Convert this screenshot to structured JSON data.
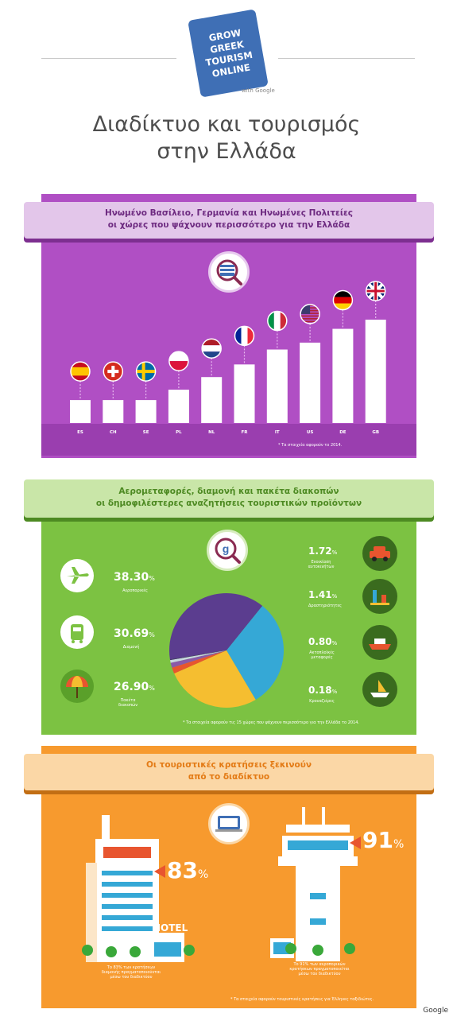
{
  "logo": {
    "lines": [
      "GROW GREEK",
      "TOURISM",
      "ONLINE"
    ],
    "with": "with Google"
  },
  "title": {
    "line1": "Διαδίκτυο και τουρισμός",
    "line2": "στην Ελλάδα"
  },
  "section1": {
    "heading1": "Ηνωμένο Βασίλειο, Γερμανία και Ηνωμένες Πολιτείες",
    "heading2": "οι χώρες που ψάχνουν περισσότερο για την Ελλάδα",
    "note": "* Τα στοιχεία αφορούν το 2014.",
    "icon": "greek-flag-search-icon"
  },
  "section2": {
    "heading1": "Αερομεταφορές, διαμονή και πακέτα διακοπών",
    "heading2": "οι δημοφιλέστερες αναζητήσεις τουριστικών προϊόντων",
    "note": "* Τα στοιχεία αφορούν τις 15 χώρες που ψάχνουν περισσότερο για την Ελλάδα το 2014.",
    "icon": "google-search-icon"
  },
  "section3": {
    "heading1": "Οι τουριστικές κρατήσεις ξεκινούν",
    "heading2": "από το διαδίκτυο",
    "hotel_sign": "HOTEL",
    "stat1": {
      "value": "83",
      "unit": "%",
      "caption1": "Το 83% των κρατήσεων",
      "caption2": "διαμονής πραγματοποιούνται",
      "caption3": "μέσω του διαδικτύου"
    },
    "stat2": {
      "value": "91",
      "unit": "%",
      "caption1": "Το 91% των αεροπορικών",
      "caption2": "κρατήσεων πραγματοποιείται",
      "caption3": "μέσω του διαδικτύου"
    },
    "note": "* Τα στοιχεία αφορούν τουριστικές κρατήσεις για Έλληνες ταξιδιώτες.",
    "icon": "laptop-booking-icon"
  },
  "footer": {
    "credit": "Google"
  },
  "chart_data": [
    {
      "type": "bar",
      "title": "Ηνωμένο Βασίλειο, Γερμανία και Ηνωμένες Πολιτείες οι χώρες που ψάχνουν περισσότερο για την Ελλάδα",
      "categories": [
        "ES",
        "CH",
        "SE",
        "PL",
        "NL",
        "FR",
        "IT",
        "US",
        "DE",
        "GB"
      ],
      "values": [
        1.0,
        1.0,
        1.0,
        1.45,
        2.0,
        2.55,
        3.2,
        3.5,
        4.1,
        4.5
      ],
      "colors": {
        "bar": "#ffffff"
      },
      "ylim": [
        0,
        4.5
      ],
      "legend": "none",
      "grid": false
    },
    {
      "type": "pie",
      "title": "Αερομεταφορές, διαμονή και πακέτα διακοπών οι δημοφιλέστερες αναζητήσεις τουριστικών προϊόντων",
      "slices": [
        {
          "label": "Αεροπορικές",
          "value": 38.3,
          "display": "38.30",
          "color": "#5b3d8f",
          "icon": "airplane-icon"
        },
        {
          "label": "Διαμονή",
          "value": 30.69,
          "display": "30.69",
          "color": "#35a8d6",
          "icon": "luggage-icon"
        },
        {
          "label": "Πακέτα διακοπών",
          "value": 26.9,
          "display": "26.90",
          "color": "#f5be30",
          "icon": "beach-umbrella-icon"
        },
        {
          "label": "Ενοικίαση αυτοκινήτων",
          "value": 1.72,
          "display": "1.72",
          "color": "#e8552f",
          "icon": "car-icon"
        },
        {
          "label": "Δραστηριότητες",
          "value": 1.41,
          "display": "1.41",
          "color": "#8a5aa8",
          "icon": "attractions-icon"
        },
        {
          "label": "Ακτοπλοϊκές μεταφορές",
          "value": 0.8,
          "display": "0.80",
          "color": "#c8d8e0",
          "icon": "ferry-icon"
        },
        {
          "label": "Κρουαζιέρες",
          "value": 0.18,
          "display": "0.18",
          "color": "#3d2a6e",
          "icon": "cruise-ship-icon"
        }
      ],
      "unit": "%"
    }
  ]
}
